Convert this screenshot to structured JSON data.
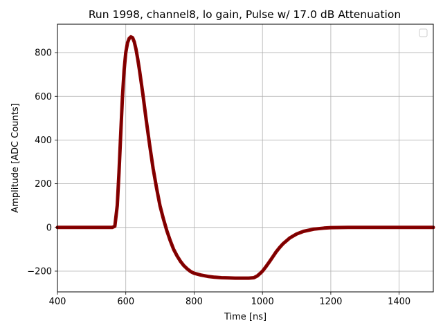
{
  "chart_data": {
    "type": "line",
    "title": "Run 1998, channel8, lo gain, Pulse w/ 17.0 dB Attenuation",
    "xlabel": "Time [ns]",
    "ylabel": "Amplitude [ADC Counts]",
    "xlim": [
      400,
      1500
    ],
    "ylim": [
      -295,
      930
    ],
    "xticks": [
      400,
      600,
      800,
      1000,
      1200,
      1400
    ],
    "yticks": [
      -200,
      0,
      200,
      400,
      600,
      800
    ],
    "ytick_labels": [
      "−200",
      "0",
      "200",
      "400",
      "600",
      "800"
    ],
    "grid": true,
    "legend": {
      "placement": "top-right",
      "entries": []
    },
    "series_color": "#8b0000",
    "series": [
      {
        "x": [
          400,
          500,
          560,
          568,
          575,
          580,
          585,
          590,
          595,
          600,
          605,
          610,
          615,
          620,
          625,
          630,
          635,
          640,
          650,
          660,
          670,
          680,
          690,
          700,
          710,
          720,
          730,
          740,
          750,
          760,
          770,
          780,
          790,
          800,
          820,
          840,
          860,
          880,
          900,
          920,
          940,
          960,
          975,
          985,
          995,
          1000,
          1010,
          1020,
          1030,
          1040,
          1050,
          1060,
          1080,
          1100,
          1120,
          1150,
          1180,
          1200,
          1250,
          1300,
          1400,
          1500
        ],
        "y": [
          0,
          0,
          0,
          5,
          100,
          250,
          420,
          590,
          720,
          800,
          845,
          865,
          872,
          868,
          848,
          815,
          770,
          720,
          610,
          490,
          375,
          270,
          180,
          100,
          40,
          -15,
          -60,
          -100,
          -130,
          -155,
          -175,
          -190,
          -202,
          -210,
          -218,
          -224,
          -228,
          -230,
          -231,
          -232,
          -232,
          -232,
          -230,
          -222,
          -208,
          -200,
          -180,
          -158,
          -135,
          -112,
          -92,
          -75,
          -48,
          -30,
          -18,
          -8,
          -3,
          -1,
          0,
          0,
          0,
          0
        ]
      }
    ]
  }
}
